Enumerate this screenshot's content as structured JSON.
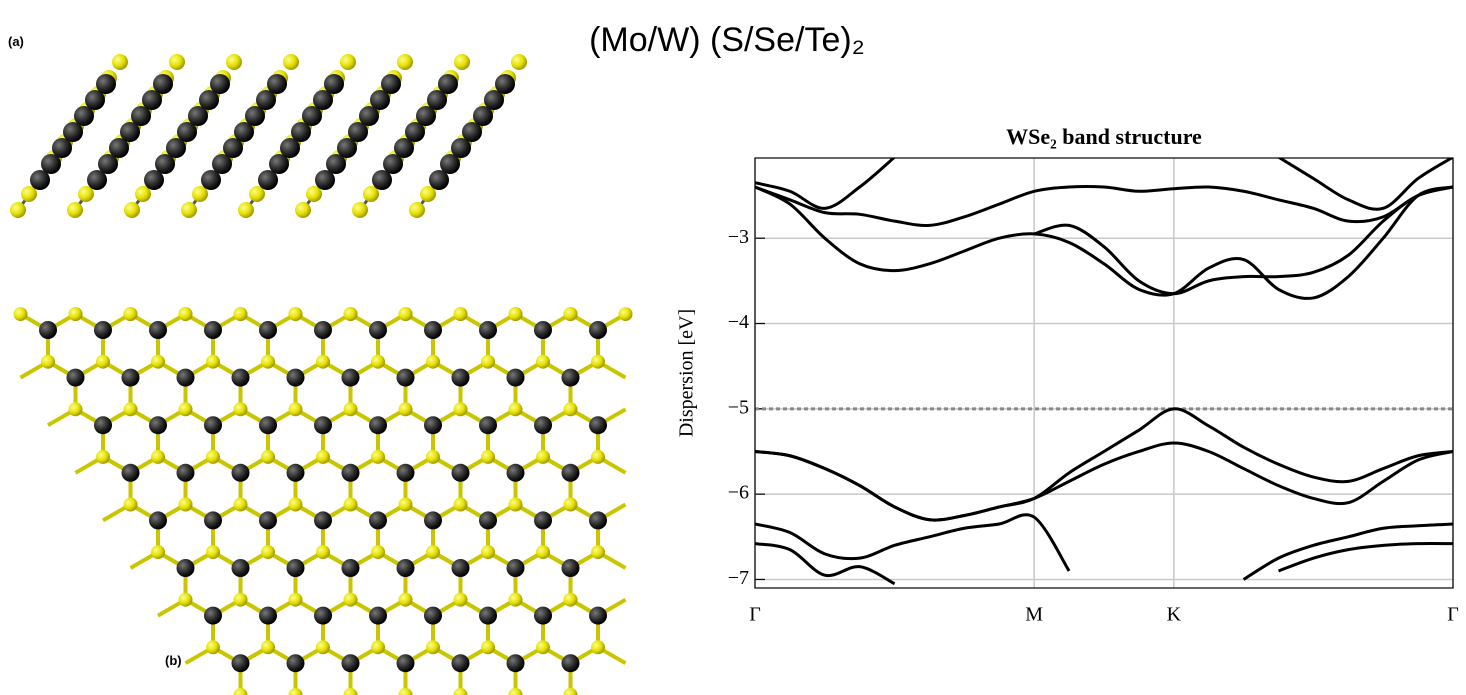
{
  "slide_title": "(Mo/W) (S/Se/Te)₂",
  "figure": {
    "panel_labels": [
      "(a)",
      "(b)"
    ]
  },
  "chart_data": {
    "type": "line",
    "title": "WSe₂ band structure",
    "y_label": "Dispersion [eV]",
    "x": [
      0,
      0.05,
      0.1,
      0.15,
      0.2,
      0.25,
      0.3,
      0.35,
      0.4,
      0.45,
      0.5,
      0.55,
      0.6,
      0.65,
      0.7,
      0.75,
      0.8,
      0.85,
      0.9,
      0.95,
      1
    ],
    "xlim": [
      0,
      1
    ],
    "xticks": [
      {
        "value": 0,
        "label": "Γ"
      },
      {
        "value": 0.4,
        "label": "M"
      },
      {
        "value": 0.6,
        "label": "K"
      },
      {
        "value": 1,
        "label": "Γ"
      }
    ],
    "ylim": [
      -7.1,
      -2.06
    ],
    "yticks": [
      {
        "value": -3,
        "label": "−3"
      },
      {
        "value": -4,
        "label": "−4"
      },
      {
        "value": -5,
        "label": "−5"
      },
      {
        "value": -6,
        "label": "−6"
      },
      {
        "value": -7,
        "label": "−7"
      }
    ],
    "grid": true,
    "reference_line": {
      "y": -5,
      "color": "#888888",
      "dashed": true
    },
    "series": [
      {
        "color": "#000000",
        "values": [
          -2.4,
          -2.6,
          -3.0,
          -3.3,
          -3.38,
          -3.3,
          -3.15,
          -3.0,
          -2.95,
          -3.05,
          -3.3,
          -3.6,
          -3.65,
          -3.35,
          -3.25,
          -3.6,
          -3.7,
          -3.45,
          -3.0,
          -2.5,
          -2.4
        ]
      },
      {
        "color": "#000000",
        "values": [
          -2.4,
          -2.55,
          -2.7,
          -2.72,
          -2.8,
          -2.85,
          -2.75,
          -2.6,
          -2.45,
          -2.4,
          -2.4,
          -2.45,
          -2.42,
          -2.4,
          -2.45,
          -2.55,
          -2.65,
          -2.8,
          -2.75,
          -2.5,
          -2.4
        ]
      },
      {
        "color": "#000000",
        "values": [
          null,
          null,
          null,
          null,
          null,
          null,
          null,
          null,
          -2.95,
          -2.85,
          -3.1,
          -3.5,
          -3.65,
          -3.5,
          -3.45,
          -3.45,
          -3.4,
          -3.2,
          -2.8,
          -2.5,
          -2.4
        ]
      },
      {
        "color": "#000000",
        "values": [
          -2.35,
          -2.45,
          -2.65,
          -2.4,
          -2.05,
          null,
          null,
          null,
          null,
          null,
          null,
          null,
          null,
          null,
          null,
          -2.05,
          -2.3,
          -2.55,
          -2.65,
          -2.3,
          -2.05
        ]
      },
      {
        "color": "#000000",
        "values": [
          -5.5,
          -5.55,
          -5.7,
          -5.9,
          -6.15,
          -6.3,
          -6.25,
          -6.15,
          -6.05,
          -5.75,
          -5.5,
          -5.25,
          -5.0,
          -5.2,
          -5.45,
          -5.65,
          -5.8,
          -5.85,
          -5.7,
          -5.55,
          -5.5
        ]
      },
      {
        "color": "#000000",
        "values": [
          -5.5,
          -5.55,
          -5.7,
          -5.9,
          -6.15,
          -6.3,
          -6.25,
          -6.15,
          -6.05,
          -5.85,
          -5.65,
          -5.5,
          -5.4,
          -5.5,
          -5.7,
          -5.9,
          -6.05,
          -6.1,
          -5.85,
          -5.6,
          -5.5
        ]
      },
      {
        "color": "#000000",
        "values": [
          -6.35,
          -6.45,
          -6.7,
          -6.75,
          -6.6,
          -6.5,
          -6.4,
          -6.35,
          -6.27,
          -6.9,
          null,
          null,
          null,
          null,
          -7.0,
          -6.75,
          -6.6,
          -6.5,
          -6.4,
          -6.37,
          -6.35
        ]
      },
      {
        "color": "#000000",
        "values": [
          -6.58,
          -6.65,
          -6.95,
          -6.85,
          -7.05,
          null,
          null,
          null,
          null,
          null,
          null,
          null,
          null,
          null,
          null,
          -6.9,
          -6.75,
          -6.65,
          -6.6,
          -6.58,
          -6.58
        ]
      }
    ]
  }
}
